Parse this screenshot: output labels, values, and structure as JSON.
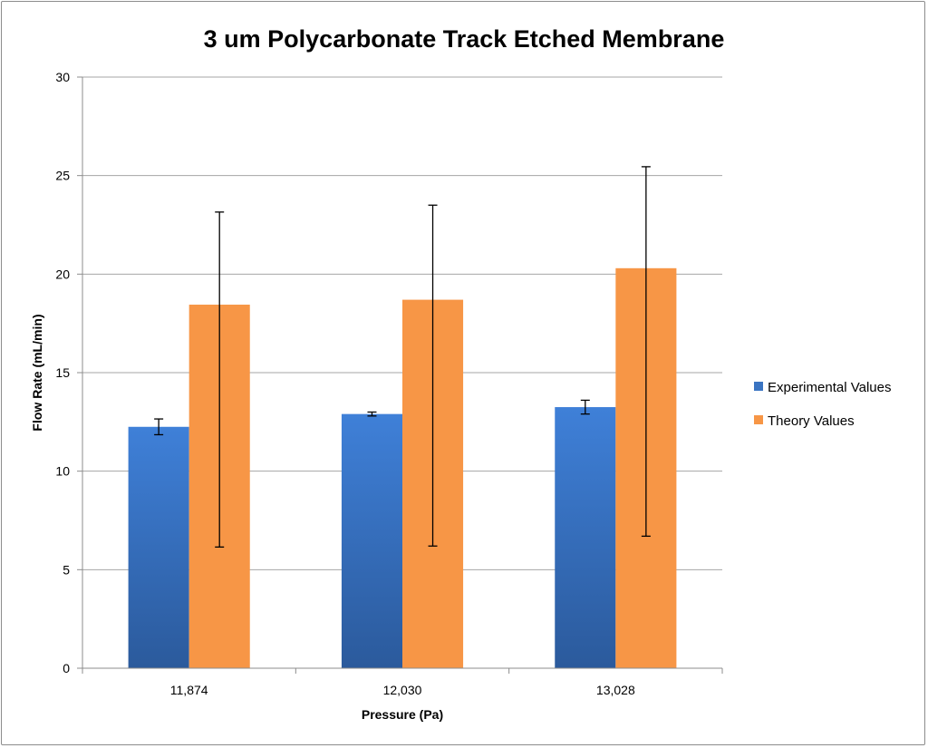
{
  "chart_data": {
    "type": "bar",
    "title": "3 um Polycarbonate Track Etched Membrane",
    "xlabel": "Pressure (Pa)",
    "ylabel": "Flow Rate (mL/min)",
    "categories": [
      "11,874",
      "12,030",
      "13,028"
    ],
    "ylim": [
      0,
      30
    ],
    "yticks": [
      0,
      5,
      10,
      15,
      20,
      25,
      30
    ],
    "grid": true,
    "legend_position": "right",
    "series": [
      {
        "name": "Experimental Values",
        "color": "#3a74c2",
        "values": [
          12.25,
          12.9,
          13.25
        ],
        "error_low": [
          11.85,
          12.8,
          12.9
        ],
        "error_high": [
          12.65,
          13.0,
          13.6
        ]
      },
      {
        "name": "Theory Values",
        "color": "#f79646",
        "values": [
          18.45,
          18.7,
          20.3
        ],
        "error_low": [
          6.15,
          6.2,
          6.7
        ],
        "error_high": [
          23.15,
          23.5,
          25.45
        ]
      }
    ]
  }
}
